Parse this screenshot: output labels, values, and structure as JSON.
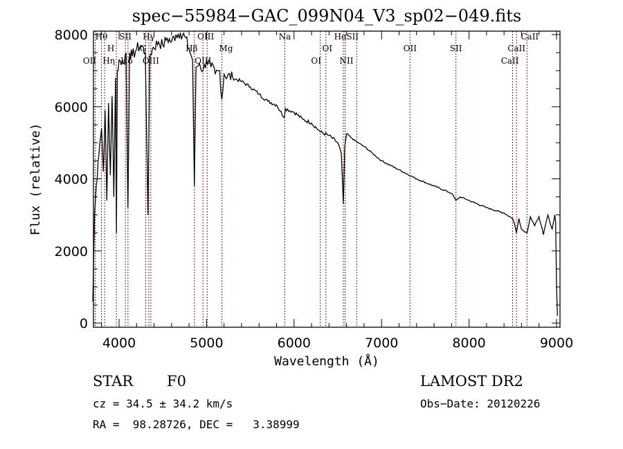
{
  "chart_data": {
    "type": "line",
    "title": "spec−55984−GAC_099N04_V3_sp02−049.fits",
    "xlabel": "Wavelength (Å)",
    "ylabel": "Flux (relative)",
    "xlim": [
      3700,
      9050
    ],
    "ylim": [
      -120,
      8100
    ],
    "x_ticks": [
      4000,
      5000,
      6000,
      7000,
      8000,
      9000
    ],
    "x_tick_labels": [
      "4000",
      "5000",
      "6000",
      "7000",
      "8000",
      "9000"
    ],
    "y_ticks": [
      0,
      2000,
      4000,
      6000,
      8000
    ],
    "y_tick_labels": [
      "0",
      "2000",
      "4000",
      "6000",
      "8000"
    ],
    "grid": false,
    "series": [
      {
        "name": "spectrum",
        "x": [
          3700,
          3720,
          3740,
          3760,
          3780,
          3800,
          3820,
          3840,
          3860,
          3880,
          3900,
          3920,
          3940,
          3960,
          3970,
          3980,
          4000,
          4050,
          4080,
          4101,
          4120,
          4150,
          4200,
          4250,
          4300,
          4330,
          4340,
          4350,
          4380,
          4450,
          4500,
          4550,
          4600,
          4650,
          4700,
          4750,
          4800,
          4840,
          4861,
          4880,
          4920,
          4960,
          5000,
          5050,
          5100,
          5150,
          5175,
          5200,
          5300,
          5400,
          5500,
          5600,
          5700,
          5800,
          5889,
          5900,
          6000,
          6100,
          6200,
          6280,
          6300,
          6400,
          6500,
          6540,
          6563,
          6580,
          6600,
          6650,
          6700,
          6800,
          6900,
          7000,
          7200,
          7400,
          7600,
          7800,
          7850,
          7900,
          8000,
          8200,
          8400,
          8498,
          8520,
          8542,
          8570,
          8600,
          8662,
          8700,
          8750,
          8800,
          8850,
          8900,
          8950,
          8980,
          8990,
          9000,
          9010
        ],
        "y": [
          600,
          3000,
          3800,
          4500,
          5000,
          5400,
          4200,
          5900,
          3400,
          6100,
          4100,
          6300,
          3500,
          6800,
          2500,
          7000,
          7300,
          7200,
          7500,
          3200,
          7500,
          7400,
          7600,
          7700,
          7500,
          3000,
          5000,
          7400,
          7600,
          7800,
          7700,
          7900,
          7800,
          8000,
          8050,
          7950,
          7600,
          7300,
          3800,
          7100,
          7200,
          7000,
          7300,
          7100,
          6900,
          7000,
          6200,
          6900,
          6800,
          6700,
          6550,
          6350,
          6150,
          6050,
          5700,
          5950,
          5850,
          5650,
          5550,
          5350,
          5300,
          5200,
          5000,
          4700,
          3300,
          4900,
          5250,
          5150,
          5050,
          4900,
          4700,
          4500,
          4250,
          4000,
          3800,
          3600,
          3400,
          3500,
          3400,
          3200,
          3050,
          2900,
          2750,
          2500,
          2900,
          2600,
          2500,
          2950,
          2700,
          2950,
          2450,
          3000,
          2600,
          3000,
          2800,
          1000,
          200
        ]
      }
    ],
    "spectral_lines": [
      {
        "label": "Hθ",
        "x": 3798
      },
      {
        "label": "OII",
        "x": 3727
      },
      {
        "label": "Hη",
        "x": 3835
      },
      {
        "label": "SII",
        "x": 4072
      },
      {
        "label": "H",
        "x": 3969
      },
      {
        "label": "Hδ",
        "x": 4102
      },
      {
        "label": "Hγ",
        "x": 4340
      },
      {
        "label": "G",
        "x": 4305
      },
      {
        "label": "OIII",
        "x": 4363
      },
      {
        "label": "Hβ",
        "x": 4861
      },
      {
        "label": "OIII",
        "x": 4959
      },
      {
        "label": "OIII",
        "x": 5007
      },
      {
        "label": "Mg",
        "x": 5175
      },
      {
        "label": "Na",
        "x": 5894
      },
      {
        "label": "OI",
        "x": 6300
      },
      {
        "label": "OI",
        "x": 6364
      },
      {
        "label": "Hα",
        "x": 6563
      },
      {
        "label": "NII",
        "x": 6583
      },
      {
        "label": "SII",
        "x": 6716
      },
      {
        "label": "OII",
        "x": 7325
      },
      {
        "label": "SII",
        "x": 7850
      },
      {
        "label": "CaII",
        "x": 8498
      },
      {
        "label": "CaII",
        "x": 8542
      },
      {
        "label": "CaII",
        "x": 8662
      }
    ]
  },
  "info": {
    "object_class": "STAR",
    "subclass": "F0",
    "redshift": "cz = 34.5 ± 34.2 km/s",
    "coords": "RA =  98.28726, DEC =   3.38999",
    "survey": "LAMOST DR2",
    "obs_date": "Obs−Date: 20120226"
  },
  "colors": {
    "spectrum": "#000000",
    "line_marker": "#8b1a1a",
    "axes": "#000000"
  }
}
